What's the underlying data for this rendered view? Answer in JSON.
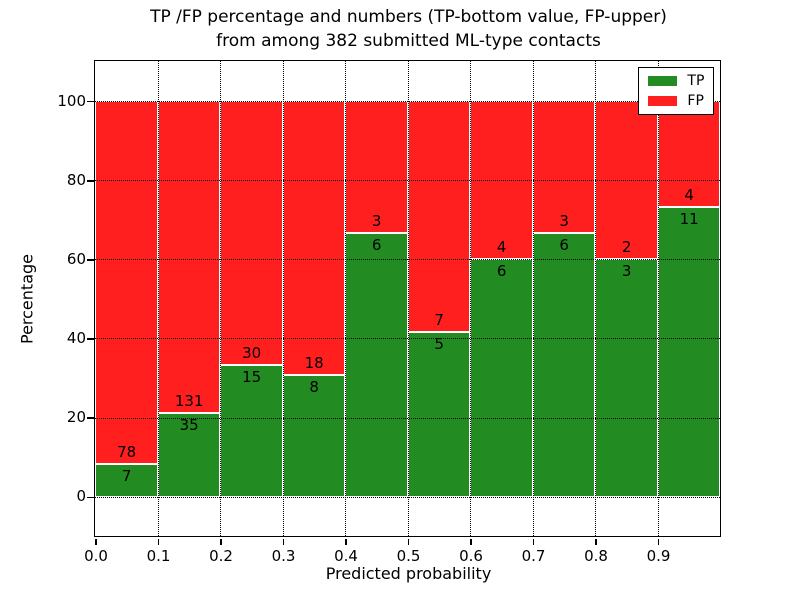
{
  "title": {
    "line1": "TP /FP percentage and numbers (TP-bottom value, FP-upper)",
    "line2": "from among 382 submitted ML-type contacts"
  },
  "chart_data": {
    "type": "bar",
    "stacked": true,
    "normalized_to_percent": true,
    "title": "TP /FP percentage and numbers (TP-bottom value, FP-upper)\nfrom among 382 submitted ML-type contacts",
    "xlabel": "Predicted probability",
    "ylabel": "Percentage",
    "total_contacts": 382,
    "xlim": [
      0.0,
      1.0
    ],
    "ylim": [
      -10,
      110
    ],
    "xticks": [
      "0.0",
      "0.1",
      "0.2",
      "0.3",
      "0.4",
      "0.5",
      "0.6",
      "0.7",
      "0.8",
      "0.9"
    ],
    "yticks": [
      "0",
      "20",
      "40",
      "60",
      "80",
      "100"
    ],
    "ytick_values": [
      0,
      20,
      40,
      60,
      80,
      100
    ],
    "grid": "dotted",
    "colors": {
      "tp": "#228b22",
      "fp": "#ff1f1f"
    },
    "legend": {
      "position": "upper right",
      "entries": [
        {
          "label": "TP",
          "color": "#228b22"
        },
        {
          "label": "FP",
          "color": "#ff1f1f"
        }
      ]
    },
    "series": [
      {
        "name": "TP",
        "values": [
          7,
          35,
          15,
          8,
          6,
          5,
          6,
          6,
          3,
          11
        ]
      },
      {
        "name": "FP",
        "values": [
          78,
          131,
          30,
          18,
          3,
          7,
          4,
          3,
          2,
          4
        ]
      }
    ],
    "bins": [
      {
        "range": [
          0.0,
          0.1
        ],
        "tp": 7,
        "fp": 78
      },
      {
        "range": [
          0.1,
          0.2
        ],
        "tp": 35,
        "fp": 131
      },
      {
        "range": [
          0.2,
          0.3
        ],
        "tp": 15,
        "fp": 30
      },
      {
        "range": [
          0.3,
          0.4
        ],
        "tp": 8,
        "fp": 18
      },
      {
        "range": [
          0.4,
          0.5
        ],
        "tp": 6,
        "fp": 3
      },
      {
        "range": [
          0.5,
          0.6
        ],
        "tp": 5,
        "fp": 7
      },
      {
        "range": [
          0.6,
          0.7
        ],
        "tp": 6,
        "fp": 4
      },
      {
        "range": [
          0.7,
          0.8
        ],
        "tp": 6,
        "fp": 3
      },
      {
        "range": [
          0.8,
          0.9
        ],
        "tp": 3,
        "fp": 2
      },
      {
        "range": [
          0.9,
          1.0
        ],
        "tp": 11,
        "fp": 4
      }
    ]
  }
}
